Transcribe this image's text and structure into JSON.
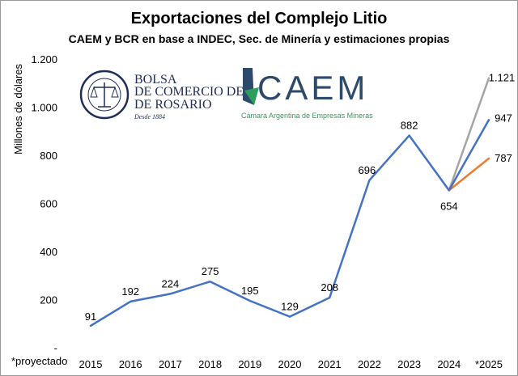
{
  "chart_data": {
    "type": "line",
    "title": "Exportaciones del Complejo Litio",
    "subtitle": "CAEM y BCR en base a INDEC, Sec. de Minería y estimaciones propias",
    "ylabel": "Millones de dólares",
    "ylim": [
      0,
      1200
    ],
    "yticks": [
      0,
      200,
      400,
      600,
      800,
      1000,
      1200
    ],
    "ytick_labels": [
      "-",
      "200",
      "400",
      "600",
      "800",
      "1.000",
      "1.200"
    ],
    "categories": [
      "2015",
      "2016",
      "2017",
      "2018",
      "2019",
      "2020",
      "2021",
      "2022",
      "2023",
      "2024",
      "*2025"
    ],
    "series": [
      {
        "color": "#4472c4",
        "points": [
          {
            "x": "2015",
            "y": 91,
            "label": "91"
          },
          {
            "x": "2016",
            "y": 192,
            "label": "192"
          },
          {
            "x": "2017",
            "y": 224,
            "label": "224"
          },
          {
            "x": "2018",
            "y": 275,
            "label": "275"
          },
          {
            "x": "2019",
            "y": 195,
            "label": "195"
          },
          {
            "x": "2020",
            "y": 129,
            "label": "129"
          },
          {
            "x": "2021",
            "y": 208,
            "label": "208"
          },
          {
            "x": "2022",
            "y": 696,
            "label": "696"
          },
          {
            "x": "2023",
            "y": 882,
            "label": "882"
          },
          {
            "x": "2024",
            "y": 654,
            "label": "654"
          },
          {
            "x": "*2025",
            "y": 947,
            "label": "947"
          }
        ]
      },
      {
        "color": "#a5a5a5",
        "points": [
          {
            "x": "2024",
            "y": 654,
            "label": ""
          },
          {
            "x": "*2025",
            "y": 1121,
            "label": "1.121"
          }
        ]
      },
      {
        "color": "#ed7d31",
        "points": [
          {
            "x": "2024",
            "y": 654,
            "label": ""
          },
          {
            "x": "*2025",
            "y": 787,
            "label": "787"
          }
        ]
      }
    ],
    "footnote": "*proyectado",
    "grid": false,
    "legend": "none"
  },
  "logos": {
    "bcr_line1": "BOLSA",
    "bcr_line2": "DE COMERCIO DE",
    "bcr_line3": "DE ROSARIO",
    "bcr_since": "Desde 1884",
    "bcr_ring": "BOLSA DE COMERCIO DE ROSARIO",
    "caem_name": "CAEM",
    "caem_tagline": "Cámara Argentina de Empresas Mineras",
    "colors": {
      "bcr": "#1f2d5a",
      "caem_text": "#2e4a6b",
      "caem_tagline": "#2e9e5b"
    }
  }
}
